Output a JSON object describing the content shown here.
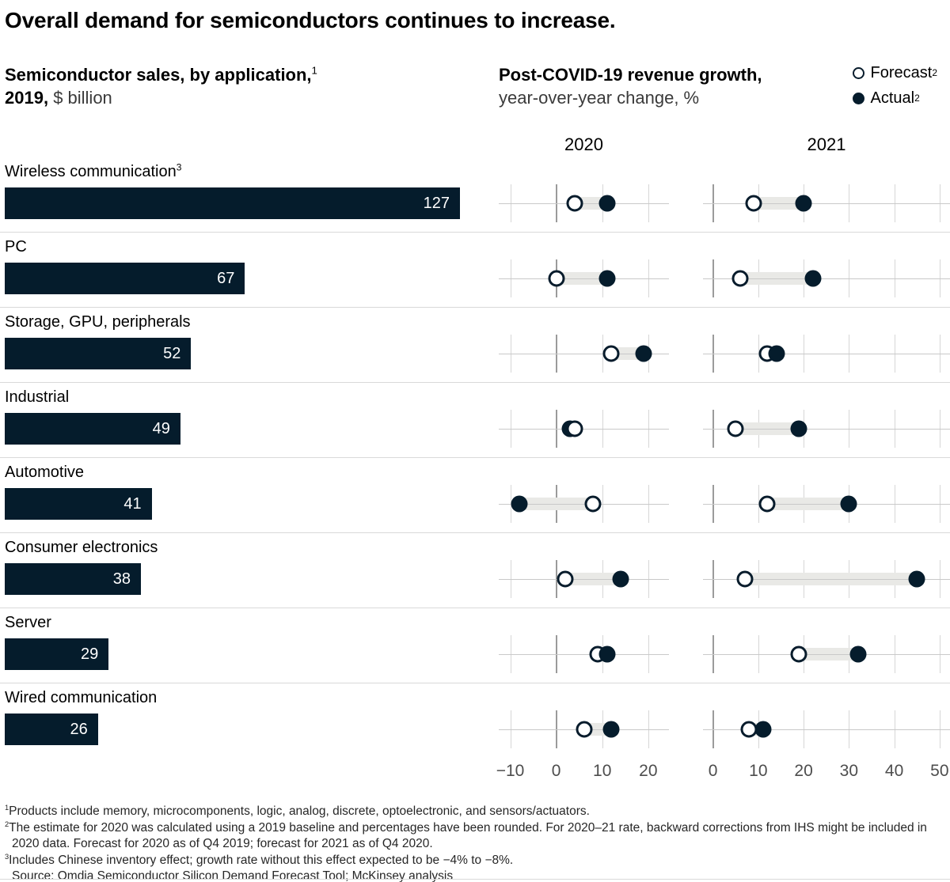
{
  "title": "Overall demand for semiconductors continues to increase.",
  "left_header": {
    "line1_bold": "Semiconductor sales, by application,",
    "line1_sup": "1",
    "line2_bold": "2019,",
    "line2_regular": "$ billion"
  },
  "right_header": {
    "line1_bold": "Post-COVID-19 revenue growth,",
    "line2_regular": "year-over-year change, %"
  },
  "legend": [
    {
      "label": "Forecast",
      "sup": "2",
      "marker": "open-circle"
    },
    {
      "label": "Actual",
      "sup": "2",
      "marker": "filled-circle"
    }
  ],
  "chart_data": {
    "type": "bar",
    "bar_subtitle": "Semiconductor sales, by application, 2019, $ billion",
    "dot_subtitle": "Post-COVID-19 revenue growth, year-over-year change, %",
    "categories": [
      "Wireless communication",
      "PC",
      "Storage, GPU, peripherals",
      "Industrial",
      "Automotive",
      "Consumer electronics",
      "Server",
      "Wired communication"
    ],
    "category_sups": [
      "3",
      "",
      "",
      "",
      "",
      "",
      "",
      ""
    ],
    "bar_values": [
      127,
      67,
      52,
      49,
      41,
      38,
      29,
      26
    ],
    "bar_max": 127,
    "series": [
      {
        "name": "2020 Forecast",
        "values": [
          4,
          0,
          12,
          4,
          8,
          2,
          9,
          6
        ]
      },
      {
        "name": "2020 Actual",
        "values": [
          11,
          11,
          19,
          3,
          -8,
          14,
          11,
          12
        ]
      },
      {
        "name": "2021 Forecast",
        "values": [
          9,
          6,
          12,
          5,
          12,
          7,
          19,
          8
        ]
      },
      {
        "name": "2021 Actual",
        "values": [
          20,
          22,
          14,
          19,
          30,
          45,
          32,
          11
        ]
      }
    ],
    "panels": [
      {
        "year": "2020",
        "ticks": [
          -10,
          0,
          10,
          20
        ],
        "range": [
          -12.5,
          24.5
        ]
      },
      {
        "year": "2021",
        "ticks": [
          0,
          10,
          20,
          30,
          40,
          50
        ],
        "range": [
          -2.2,
          52.3
        ]
      }
    ],
    "colors": {
      "navy": "#051c2c",
      "band": "#e9e9e6",
      "gridline": "#d6d6d6",
      "zero_gridline": "#9b9b9b",
      "axis_label": "#4d4d4d",
      "bar_value_text": "#ffffff"
    },
    "grid": "vertical ticks every 10",
    "legend_position": "top-right"
  },
  "footnotes": [
    {
      "sup": "1",
      "text": "Products include memory, microcomponents, logic, analog, discrete, optoelectronic, and sensors/actuators."
    },
    {
      "sup": "2",
      "text": "The estimate for 2020 was calculated using a 2019 baseline and percentages have been rounded. For 2020–21 rate, backward corrections from IHS might be included in 2020 data. Forecast for 2020 as of Q4 2019; forecast for 2021 as of Q4 2020."
    },
    {
      "sup": "3",
      "text": "Includes Chinese inventory effect; growth rate without this effect expected to be −4% to −8%."
    },
    {
      "sup": "",
      "text": "Source: Omdia Semiconductor Silicon Demand Forecast Tool; McKinsey analysis"
    }
  ]
}
